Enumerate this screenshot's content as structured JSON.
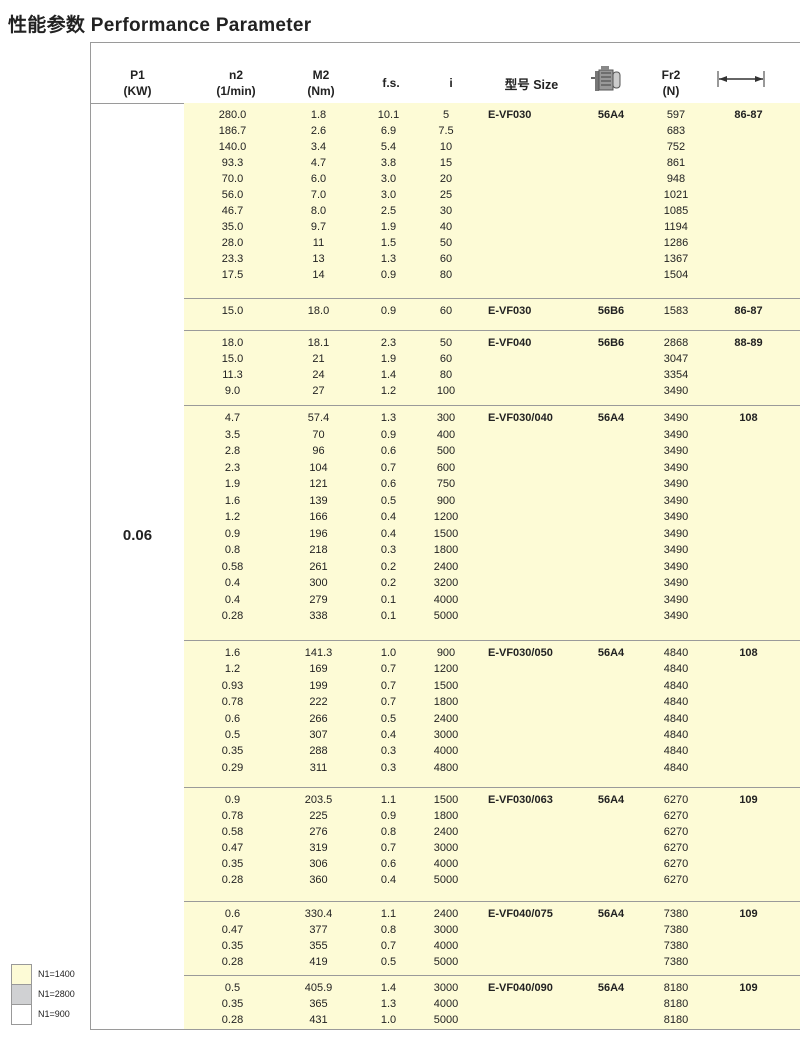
{
  "title": "性能参数 Performance Parameter",
  "header": {
    "p1": "P1",
    "p1_unit": "(KW)",
    "n2": "n2",
    "n2_unit": "(1/min)",
    "m2": "M2",
    "m2_unit": "(Nm)",
    "fs": "f.s.",
    "i": "i",
    "size": "型号 Size",
    "motor_icon": "motor-icon",
    "fr2": "Fr2",
    "fr2_unit": "(N)",
    "dim_icon": "dimension-arrow-icon"
  },
  "p1_value": "0.06",
  "colors": {
    "n1_1400": "#fdfbd6",
    "n1_2800": "#d0d1d3",
    "n1_900": "#ffffff"
  },
  "legend": [
    {
      "label": "N1=1400",
      "color": "#fdfbd6"
    },
    {
      "label": "N1=2800",
      "color": "#d0d1d3"
    },
    {
      "label": "N1=900",
      "color": "#ffffff"
    }
  ],
  "groups": [
    {
      "model": "E-VF030",
      "motor": "56A4",
      "dim": "86-87",
      "rows": [
        [
          "280.0",
          "1.8",
          "10.1",
          "5",
          "597"
        ],
        [
          "186.7",
          "2.6",
          "6.9",
          "7.5",
          "683"
        ],
        [
          "140.0",
          "3.4",
          "5.4",
          "10",
          "752"
        ],
        [
          "93.3",
          "4.7",
          "3.8",
          "15",
          "861"
        ],
        [
          "70.0",
          "6.0",
          "3.0",
          "20",
          "948"
        ],
        [
          "56.0",
          "7.0",
          "3.0",
          "25",
          "1021"
        ],
        [
          "46.7",
          "8.0",
          "2.5",
          "30",
          "1085"
        ],
        [
          "35.0",
          "9.7",
          "1.9",
          "40",
          "1194"
        ],
        [
          "28.0",
          "11",
          "1.5",
          "50",
          "1286"
        ],
        [
          "23.3",
          "13",
          "1.3",
          "60",
          "1367"
        ],
        [
          "17.5",
          "14",
          "0.9",
          "80",
          "1504"
        ]
      ]
    },
    {
      "model": "E-VF030",
      "motor": "56B6",
      "dim": "86-87",
      "rows": [
        [
          "15.0",
          "18.0",
          "0.9",
          "60",
          "1583"
        ]
      ]
    },
    {
      "model": "E-VF040",
      "motor": "56B6",
      "dim": "88-89",
      "rows": [
        [
          "18.0",
          "18.1",
          "2.3",
          "50",
          "2868"
        ],
        [
          "15.0",
          "21",
          "1.9",
          "60",
          "3047"
        ],
        [
          "11.3",
          "24",
          "1.4",
          "80",
          "3354"
        ],
        [
          "9.0",
          "27",
          "1.2",
          "100",
          "3490"
        ]
      ]
    },
    {
      "model": "E-VF030/040",
      "motor": "56A4",
      "dim": "108",
      "rows": [
        [
          "4.7",
          "57.4",
          "1.3",
          "300",
          "3490"
        ],
        [
          "3.5",
          "70",
          "0.9",
          "400",
          "3490"
        ],
        [
          "2.8",
          "96",
          "0.6",
          "500",
          "3490"
        ],
        [
          "2.3",
          "104",
          "0.7",
          "600",
          "3490"
        ],
        [
          "1.9",
          "121",
          "0.6",
          "750",
          "3490"
        ],
        [
          "1.6",
          "139",
          "0.5",
          "900",
          "3490"
        ],
        [
          "1.2",
          "166",
          "0.4",
          "1200",
          "3490"
        ],
        [
          "0.9",
          "196",
          "0.4",
          "1500",
          "3490"
        ],
        [
          "0.8",
          "218",
          "0.3",
          "1800",
          "3490"
        ],
        [
          "0.58",
          "261",
          "0.2",
          "2400",
          "3490"
        ],
        [
          "0.4",
          "300",
          "0.2",
          "3200",
          "3490"
        ],
        [
          "0.4",
          "279",
          "0.1",
          "4000",
          "3490"
        ],
        [
          "0.28",
          "338",
          "0.1",
          "5000",
          "3490"
        ]
      ]
    },
    {
      "model": "E-VF030/050",
      "motor": "56A4",
      "dim": "108",
      "rows": [
        [
          "1.6",
          "141.3",
          "1.0",
          "900",
          "4840"
        ],
        [
          "1.2",
          "169",
          "0.7",
          "1200",
          "4840"
        ],
        [
          "0.93",
          "199",
          "0.7",
          "1500",
          "4840"
        ],
        [
          "0.78",
          "222",
          "0.7",
          "1800",
          "4840"
        ],
        [
          "0.6",
          "266",
          "0.5",
          "2400",
          "4840"
        ],
        [
          "0.5",
          "307",
          "0.4",
          "3000",
          "4840"
        ],
        [
          "0.35",
          "288",
          "0.3",
          "4000",
          "4840"
        ],
        [
          "0.29",
          "311",
          "0.3",
          "4800",
          "4840"
        ]
      ]
    },
    {
      "model": "E-VF030/063",
      "motor": "56A4",
      "dim": "109",
      "rows": [
        [
          "0.9",
          "203.5",
          "1.1",
          "1500",
          "6270"
        ],
        [
          "0.78",
          "225",
          "0.9",
          "1800",
          "6270"
        ],
        [
          "0.58",
          "276",
          "0.8",
          "2400",
          "6270"
        ],
        [
          "0.47",
          "319",
          "0.7",
          "3000",
          "6270"
        ],
        [
          "0.35",
          "306",
          "0.6",
          "4000",
          "6270"
        ],
        [
          "0.28",
          "360",
          "0.4",
          "5000",
          "6270"
        ]
      ]
    },
    {
      "model": "E-VF040/075",
      "motor": "56A4",
      "dim": "109",
      "rows": [
        [
          "0.6",
          "330.4",
          "1.1",
          "2400",
          "7380"
        ],
        [
          "0.47",
          "377",
          "0.8",
          "3000",
          "7380"
        ],
        [
          "0.35",
          "355",
          "0.7",
          "4000",
          "7380"
        ],
        [
          "0.28",
          "419",
          "0.5",
          "5000",
          "7380"
        ]
      ]
    },
    {
      "model": "E-VF040/090",
      "motor": "56A4",
      "dim": "109",
      "rows": [
        [
          "0.5",
          "405.9",
          "1.4",
          "3000",
          "8180"
        ],
        [
          "0.35",
          "365",
          "1.3",
          "4000",
          "8180"
        ],
        [
          "0.28",
          "431",
          "1.0",
          "5000",
          "8180"
        ]
      ]
    }
  ]
}
